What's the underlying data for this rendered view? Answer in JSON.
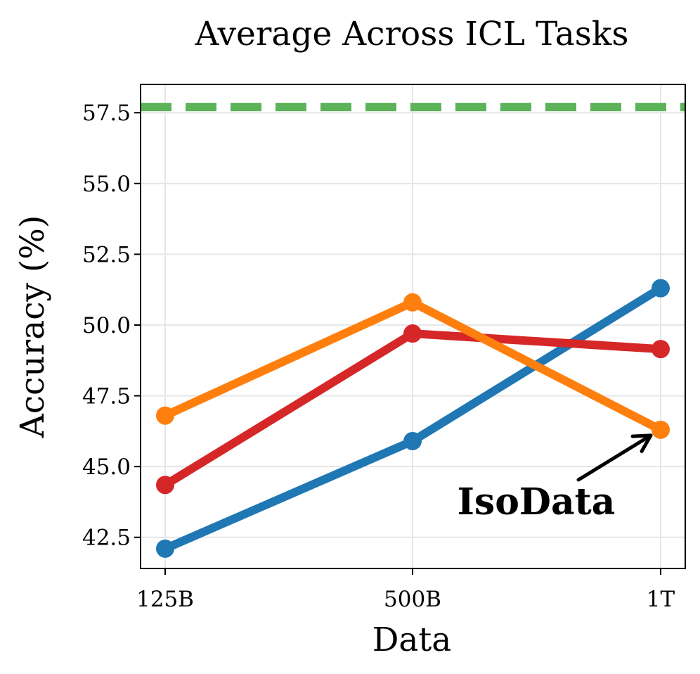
{
  "chart_data": {
    "type": "line",
    "title": "Average Across ICL Tasks",
    "xlabel": "Data",
    "ylabel": "Accuracy (%)",
    "categories": [
      "125B",
      "500B",
      "1T"
    ],
    "ylim": [
      41.4,
      58.5
    ],
    "yticks": [
      42.5,
      45.0,
      47.5,
      50.0,
      52.5,
      55.0,
      57.5
    ],
    "grid": true,
    "series": [
      {
        "name": "blue",
        "color": "#1f77b4",
        "values": [
          42.1,
          45.9,
          51.3
        ]
      },
      {
        "name": "red",
        "color": "#d62728",
        "values": [
          44.35,
          49.7,
          49.15
        ]
      },
      {
        "name": "orange",
        "color": "#ff7f0e",
        "values": [
          46.8,
          50.8,
          46.3
        ]
      }
    ],
    "reference_line": {
      "style": "dashed",
      "color": "#5cb35a",
      "value": 57.7
    },
    "annotation": {
      "text": "IsoData",
      "points_to": {
        "category": "1T",
        "value": 46.3
      }
    }
  }
}
